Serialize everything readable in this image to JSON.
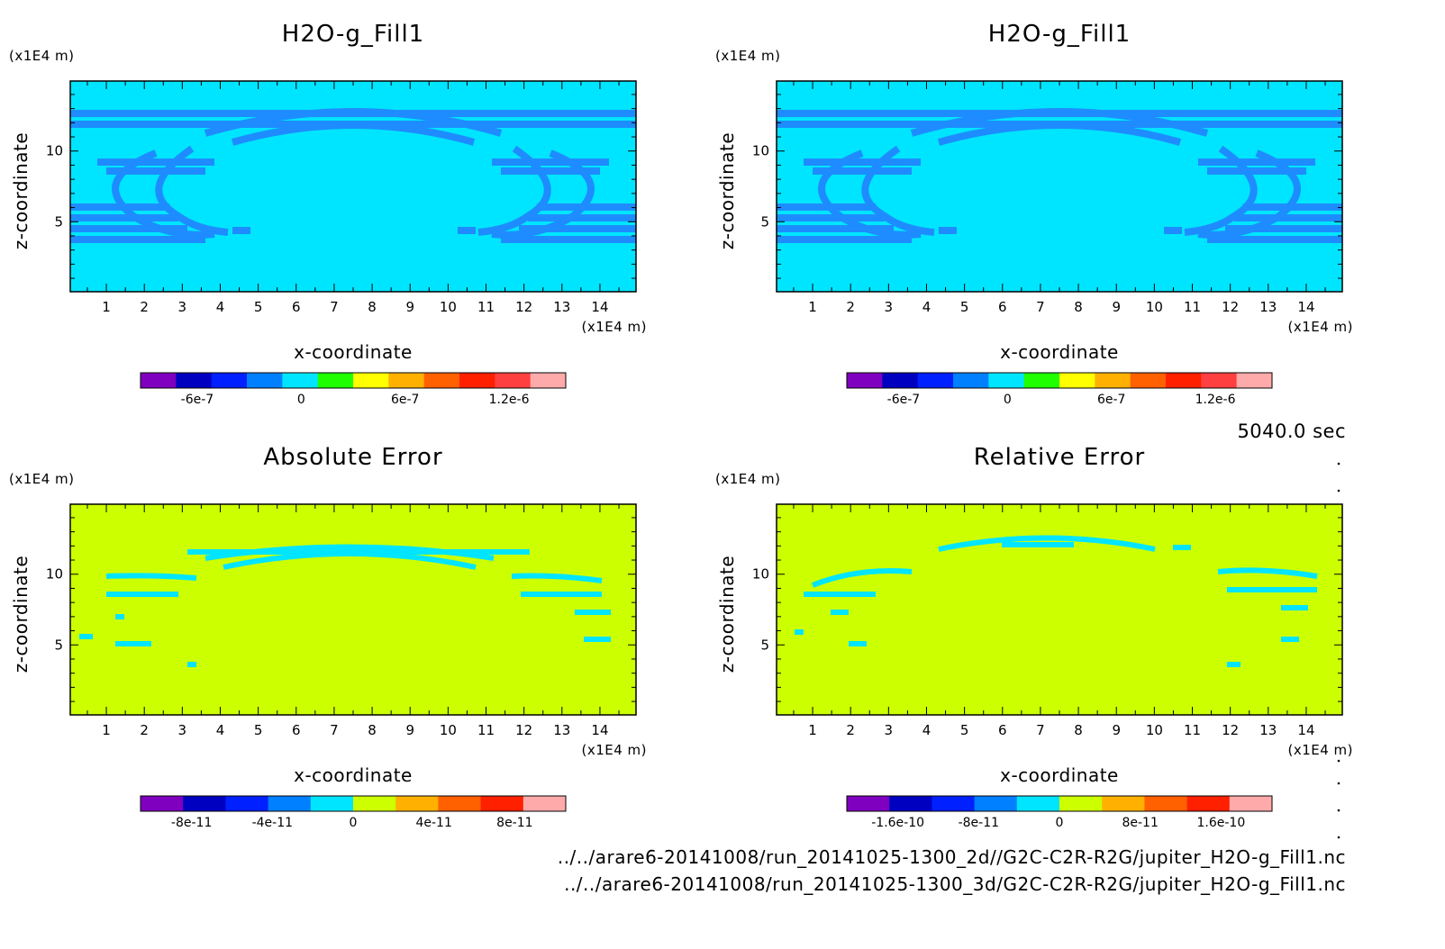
{
  "timestamp": "5040.0 sec",
  "footer": {
    "line1": "../../arare6-20141008/run_20141025-1300_2d//G2C-C2R-R2G/jupiter_H2O-g_Fill1.nc",
    "line2": "../../arare6-20141008/run_20141025-1300_3d/G2C-C2R-R2G/jupiter_H2O-g_Fill1.nc"
  },
  "colors": {
    "field_background": "#00e5ff",
    "field_contour": "#1e8cff",
    "error_background": "#ccff00",
    "error_contour": "#00e5ff"
  },
  "chart_data": [
    {
      "type": "heatmap",
      "title": "H2O-g_Fill1",
      "xlabel": "x-coordinate",
      "ylabel": "z-coordinate",
      "x_unit": "(x1E4 m)",
      "y_unit": "(x1E4 m)",
      "xlim": [
        0.05,
        14.95
      ],
      "ylim": [
        0.05,
        14.95
      ],
      "x_ticks": [
        "1",
        "2",
        "3",
        "4",
        "5",
        "6",
        "7",
        "8",
        "9",
        "10",
        "11",
        "12",
        "13",
        "14"
      ],
      "y_ticks": [
        "5",
        "10"
      ],
      "colorbar": {
        "colors": [
          "#8000c0",
          "#0000c0",
          "#0020ff",
          "#0080ff",
          "#00e5ff",
          "#20ff00",
          "#ffff00",
          "#ffb000",
          "#ff6000",
          "#ff2000",
          "#ff4040",
          "#ffaaaa"
        ],
        "tick_labels": [
          "-6e-7",
          "0",
          "6e-7",
          "1.2e-6"
        ]
      }
    },
    {
      "type": "heatmap",
      "title": "H2O-g_Fill1",
      "xlabel": "x-coordinate",
      "ylabel": "z-coordinate",
      "x_unit": "(x1E4 m)",
      "y_unit": "(x1E4 m)",
      "xlim": [
        0.05,
        14.95
      ],
      "ylim": [
        0.05,
        14.95
      ],
      "x_ticks": [
        "1",
        "2",
        "3",
        "4",
        "5",
        "6",
        "7",
        "8",
        "9",
        "10",
        "11",
        "12",
        "13",
        "14"
      ],
      "y_ticks": [
        "5",
        "10"
      ],
      "colorbar": {
        "colors": [
          "#8000c0",
          "#0000c0",
          "#0020ff",
          "#0080ff",
          "#00e5ff",
          "#20ff00",
          "#ffff00",
          "#ffb000",
          "#ff6000",
          "#ff2000",
          "#ff4040",
          "#ffaaaa"
        ],
        "tick_labels": [
          "-6e-7",
          "0",
          "6e-7",
          "1.2e-6"
        ]
      }
    },
    {
      "type": "heatmap",
      "title": "Absolute Error",
      "xlabel": "x-coordinate",
      "ylabel": "z-coordinate",
      "x_unit": "(x1E4 m)",
      "y_unit": "(x1E4 m)",
      "xlim": [
        0.05,
        14.95
      ],
      "ylim": [
        0.05,
        14.95
      ],
      "x_ticks": [
        "1",
        "2",
        "3",
        "4",
        "5",
        "6",
        "7",
        "8",
        "9",
        "10",
        "11",
        "12",
        "13",
        "14"
      ],
      "y_ticks": [
        "5",
        "10"
      ],
      "colorbar": {
        "colors": [
          "#8000c0",
          "#0000c0",
          "#0020ff",
          "#0080ff",
          "#00e5ff",
          "#ccff00",
          "#ffb000",
          "#ff6000",
          "#ff2000",
          "#ffaaaa"
        ],
        "tick_labels": [
          "-8e-11",
          "-4e-11",
          "0",
          "4e-11",
          "8e-11"
        ]
      }
    },
    {
      "type": "heatmap",
      "title": "Relative Error",
      "xlabel": "x-coordinate",
      "ylabel": "z-coordinate",
      "x_unit": "(x1E4 m)",
      "y_unit": "(x1E4 m)",
      "xlim": [
        0.05,
        14.95
      ],
      "ylim": [
        0.05,
        14.95
      ],
      "x_ticks": [
        "1",
        "2",
        "3",
        "4",
        "5",
        "6",
        "7",
        "8",
        "9",
        "10",
        "11",
        "12",
        "13",
        "14"
      ],
      "y_ticks": [
        "5",
        "10"
      ],
      "colorbar": {
        "colors": [
          "#8000c0",
          "#0000c0",
          "#0020ff",
          "#0080ff",
          "#00e5ff",
          "#ccff00",
          "#ffb000",
          "#ff6000",
          "#ff2000",
          "#ffaaaa"
        ],
        "tick_labels": [
          "-1.6e-10",
          "-8e-11",
          "0",
          "8e-11",
          "1.6e-10"
        ]
      }
    }
  ]
}
